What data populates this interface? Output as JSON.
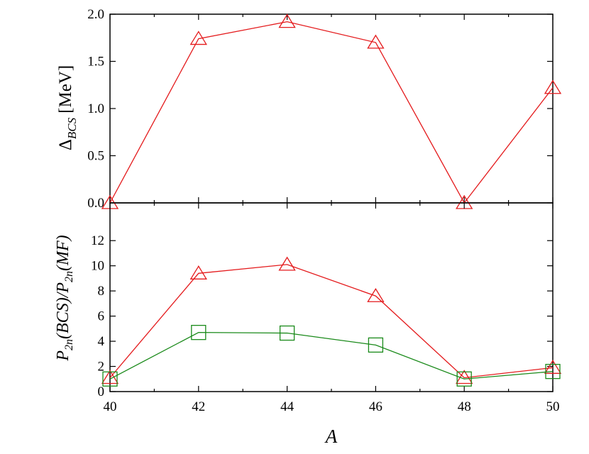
{
  "chart_data": [
    {
      "type": "line",
      "ylabel": "Δ_BCS [MeV]",
      "ylabel_parts": {
        "symbol": "Δ",
        "subscript": "BCS",
        "unit": "[MeV]"
      },
      "ylim": [
        0.0,
        2.0
      ],
      "yticks": [
        "0.0",
        "0.5",
        "1.0",
        "1.5",
        "2.0"
      ],
      "grid": false,
      "series": [
        {
          "marker": "triangle",
          "color": "#e41a1c",
          "x": [
            40,
            42,
            44,
            46,
            48,
            50
          ],
          "values": [
            0.0,
            1.74,
            1.92,
            1.7,
            0.0,
            1.22
          ]
        }
      ]
    },
    {
      "type": "line",
      "ylabel": "P_2n(BCS)/P_2n(MF)",
      "ylim": [
        0,
        15
      ],
      "yticks": [
        "0",
        "2",
        "4",
        "6",
        "8",
        "10",
        "12"
      ],
      "xlabel": "A",
      "xlim": [
        40,
        50
      ],
      "xticks": [
        "40",
        "42",
        "44",
        "46",
        "48",
        "50"
      ],
      "grid": false,
      "series": [
        {
          "marker": "triangle",
          "color": "#e41a1c",
          "x": [
            40,
            42,
            44,
            46,
            48,
            50
          ],
          "values": [
            1.1,
            9.4,
            10.1,
            7.6,
            1.1,
            1.9
          ]
        },
        {
          "marker": "square",
          "color": "#1a8a1a",
          "x": [
            40,
            42,
            44,
            46,
            48,
            50
          ],
          "values": [
            1.0,
            4.7,
            4.65,
            3.7,
            1.0,
            1.6
          ]
        }
      ]
    }
  ]
}
